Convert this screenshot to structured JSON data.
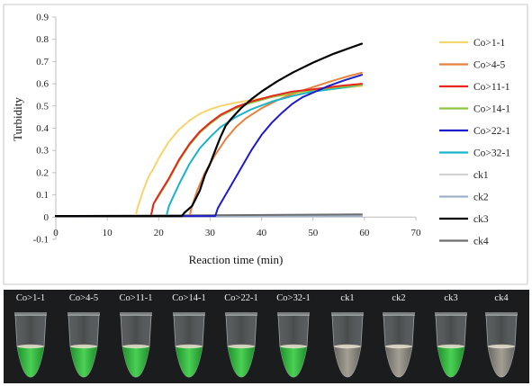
{
  "chart_data": {
    "type": "line",
    "xlabel": "Reaction time (min)",
    "ylabel": "Turbidity",
    "xlim": [
      0,
      70
    ],
    "ylim": [
      -0.1,
      0.9
    ],
    "xticks": [
      0,
      10,
      20,
      30,
      40,
      50,
      60,
      70
    ],
    "yticks": [
      -0.1,
      0,
      0.1,
      0.2,
      0.3,
      0.4,
      0.5,
      0.6,
      0.7,
      0.8,
      0.9
    ],
    "ytick_labels": [
      "-0.1",
      "0",
      "0.1",
      "0.2",
      "0.3",
      "0.4",
      "0.5",
      "0.6",
      "0.7",
      "0.8",
      "0.9"
    ],
    "grid": false,
    "legend": "right",
    "series": [
      {
        "name": "Co>1-1",
        "color": "#f6d46e",
        "points": [
          [
            0,
            0.005
          ],
          [
            15.5,
            0.005
          ],
          [
            16,
            0.05
          ],
          [
            17,
            0.12
          ],
          [
            18,
            0.18
          ],
          [
            19,
            0.22
          ],
          [
            20,
            0.265
          ],
          [
            22,
            0.34
          ],
          [
            24,
            0.395
          ],
          [
            26,
            0.435
          ],
          [
            28,
            0.465
          ],
          [
            30,
            0.485
          ],
          [
            32,
            0.5
          ],
          [
            35,
            0.515
          ],
          [
            40,
            0.535
          ],
          [
            45,
            0.55
          ],
          [
            50,
            0.565
          ],
          [
            55,
            0.58
          ],
          [
            59.5,
            0.59
          ]
        ]
      },
      {
        "name": "Co>4-5",
        "color": "#e8813f",
        "points": [
          [
            0,
            0.005
          ],
          [
            26,
            0.005
          ],
          [
            26.5,
            0.05
          ],
          [
            27.5,
            0.12
          ],
          [
            29,
            0.2
          ],
          [
            31,
            0.28
          ],
          [
            33,
            0.35
          ],
          [
            35,
            0.405
          ],
          [
            37,
            0.445
          ],
          [
            40,
            0.49
          ],
          [
            43,
            0.525
          ],
          [
            46,
            0.555
          ],
          [
            50,
            0.585
          ],
          [
            54,
            0.615
          ],
          [
            57,
            0.635
          ],
          [
            59.5,
            0.65
          ]
        ]
      },
      {
        "name": "Co>11-1",
        "color": "#e8261c",
        "points": [
          [
            0,
            0.005
          ],
          [
            18.5,
            0.005
          ],
          [
            19,
            0.06
          ],
          [
            20,
            0.1
          ],
          [
            22,
            0.175
          ],
          [
            24,
            0.26
          ],
          [
            26,
            0.33
          ],
          [
            28,
            0.385
          ],
          [
            30,
            0.425
          ],
          [
            32,
            0.46
          ],
          [
            35,
            0.495
          ],
          [
            38,
            0.52
          ],
          [
            42,
            0.545
          ],
          [
            46,
            0.565
          ],
          [
            50,
            0.575
          ],
          [
            55,
            0.59
          ],
          [
            59.5,
            0.6
          ]
        ]
      },
      {
        "name": "Co>14-1",
        "color": "#8cc63f",
        "points": [
          [
            0,
            0.005
          ],
          [
            18.5,
            0.005
          ],
          [
            19,
            0.06
          ],
          [
            20,
            0.095
          ],
          [
            22,
            0.17
          ],
          [
            24,
            0.255
          ],
          [
            26,
            0.325
          ],
          [
            28,
            0.38
          ],
          [
            30,
            0.42
          ],
          [
            32,
            0.455
          ],
          [
            35,
            0.49
          ],
          [
            38,
            0.515
          ],
          [
            42,
            0.54
          ],
          [
            46,
            0.56
          ],
          [
            50,
            0.572
          ],
          [
            55,
            0.585
          ],
          [
            59.5,
            0.595
          ]
        ]
      },
      {
        "name": "Co>22-1",
        "color": "#1c1ccc",
        "points": [
          [
            0,
            0.005
          ],
          [
            31,
            0.005
          ],
          [
            31.5,
            0.04
          ],
          [
            32.5,
            0.08
          ],
          [
            34,
            0.14
          ],
          [
            36,
            0.22
          ],
          [
            38,
            0.3
          ],
          [
            40,
            0.37
          ],
          [
            42,
            0.425
          ],
          [
            44,
            0.47
          ],
          [
            46,
            0.51
          ],
          [
            48,
            0.54
          ],
          [
            50,
            0.56
          ],
          [
            53,
            0.59
          ],
          [
            56,
            0.615
          ],
          [
            59.5,
            0.64
          ]
        ]
      },
      {
        "name": "Co>32-1",
        "color": "#1ab3c9",
        "points": [
          [
            0,
            0.005
          ],
          [
            21.5,
            0.005
          ],
          [
            22,
            0.05
          ],
          [
            23,
            0.1
          ],
          [
            24,
            0.15
          ],
          [
            26,
            0.24
          ],
          [
            28,
            0.31
          ],
          [
            30,
            0.36
          ],
          [
            32,
            0.405
          ],
          [
            35,
            0.45
          ],
          [
            38,
            0.485
          ],
          [
            42,
            0.52
          ],
          [
            46,
            0.545
          ],
          [
            50,
            0.565
          ],
          [
            55,
            0.58
          ],
          [
            59.5,
            0.595
          ]
        ]
      },
      {
        "name": "ck1",
        "color": "#d3d3d3",
        "points": [
          [
            0,
            0.004
          ],
          [
            59.5,
            0.004
          ]
        ]
      },
      {
        "name": "ck2",
        "color": "#9fb3c8",
        "points": [
          [
            0,
            0.003
          ],
          [
            59.5,
            0.005
          ]
        ]
      },
      {
        "name": "ck3",
        "color": "#000000",
        "points": [
          [
            0,
            0.005
          ],
          [
            24.5,
            0.005
          ],
          [
            25,
            0.02
          ],
          [
            26.5,
            0.05
          ],
          [
            28,
            0.12
          ],
          [
            29,
            0.19
          ],
          [
            30,
            0.24
          ],
          [
            31,
            0.3
          ],
          [
            32,
            0.36
          ],
          [
            33,
            0.41
          ],
          [
            34,
            0.44
          ],
          [
            36,
            0.49
          ],
          [
            38,
            0.53
          ],
          [
            40,
            0.565
          ],
          [
            43,
            0.61
          ],
          [
            46,
            0.65
          ],
          [
            50,
            0.695
          ],
          [
            54,
            0.735
          ],
          [
            57,
            0.76
          ],
          [
            59.5,
            0.78
          ]
        ]
      },
      {
        "name": "ck4",
        "color": "#6e6e6e",
        "points": [
          [
            0,
            0.005
          ],
          [
            59.5,
            0.012
          ]
        ]
      }
    ]
  },
  "photo_labels": [
    "Co>1-1",
    "Co>4-5",
    "Co>11-1",
    "Co>14-1",
    "Co>22-1",
    "Co>32-1",
    "ck1",
    "ck2",
    "ck3",
    "ck4"
  ],
  "tube_results": [
    "green",
    "green",
    "green",
    "green",
    "green",
    "green",
    "clear",
    "clear",
    "green",
    "clear"
  ]
}
